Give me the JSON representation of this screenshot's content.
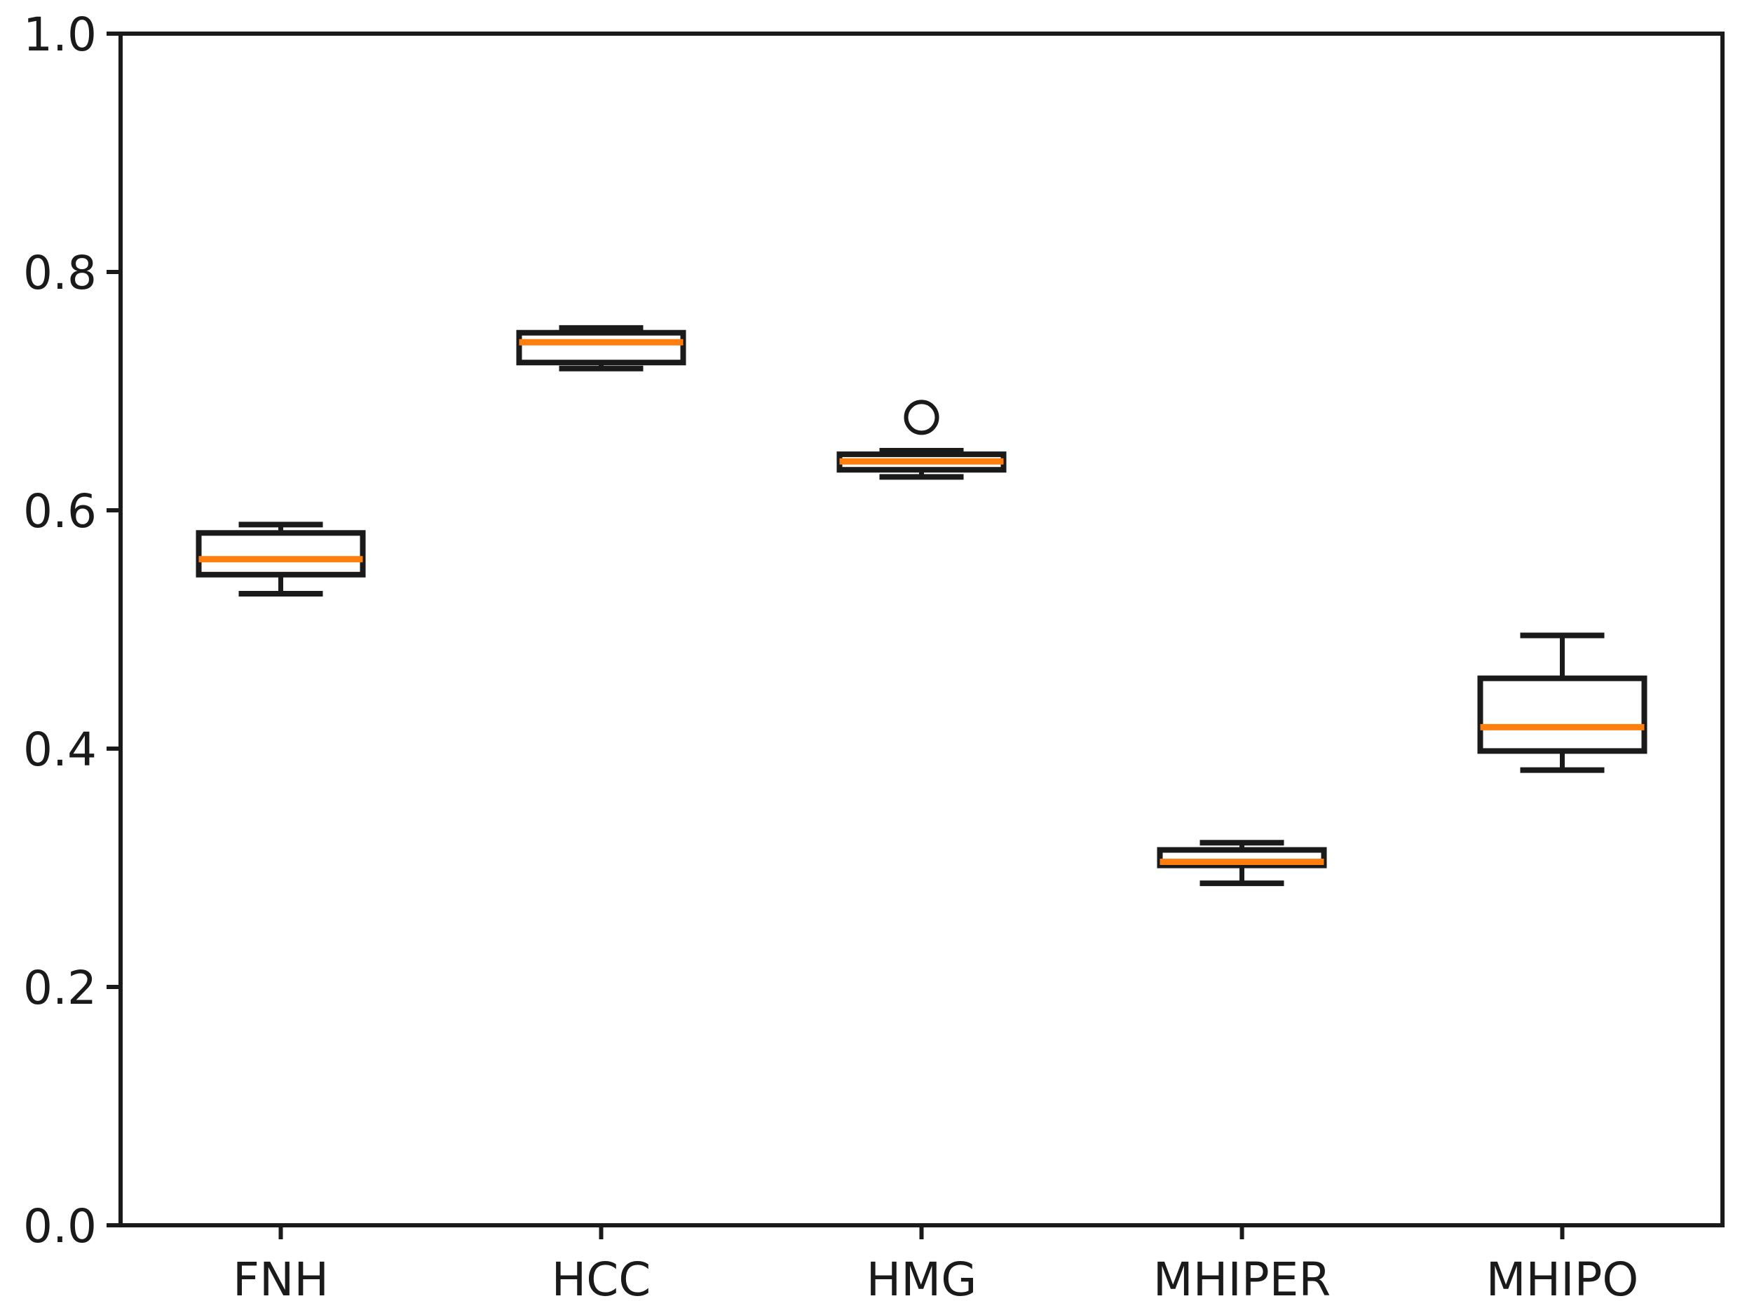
{
  "chart_data": {
    "type": "boxplot",
    "title": "",
    "xlabel": "",
    "ylabel": "",
    "grid": false,
    "legend": null,
    "categories": [
      "FNH",
      "HCC",
      "HMG",
      "MHIPER",
      "MHIPO"
    ],
    "series": [
      {
        "label": "FNH",
        "whislo": 0.53,
        "q1": 0.546,
        "med": 0.559,
        "q3": 0.581,
        "whishi": 0.588,
        "fliers": []
      },
      {
        "label": "HCC",
        "whislo": 0.719,
        "q1": 0.724,
        "med": 0.741,
        "q3": 0.749,
        "whishi": 0.753,
        "fliers": []
      },
      {
        "label": "HMG",
        "whislo": 0.628,
        "q1": 0.634,
        "med": 0.641,
        "q3": 0.647,
        "whishi": 0.65,
        "fliers": [
          0.678
        ]
      },
      {
        "label": "MHIPER",
        "whislo": 0.287,
        "q1": 0.302,
        "med": 0.305,
        "q3": 0.315,
        "whishi": 0.321,
        "fliers": []
      },
      {
        "label": "MHIPO",
        "whislo": 0.382,
        "q1": 0.398,
        "med": 0.418,
        "q3": 0.459,
        "whishi": 0.495,
        "fliers": []
      }
    ],
    "ylim": [
      0.0,
      1.0
    ],
    "yticks": [
      0.0,
      0.2,
      0.4,
      0.6,
      0.8,
      1.0
    ],
    "ytick_labels": [
      "0.0",
      "0.2",
      "0.4",
      "0.6",
      "0.8",
      "1.0"
    ],
    "colors": {
      "box_line": "#1a1a1a",
      "median_line": "#ff7f0e",
      "tick_text": "#1a1a1a",
      "background": "#ffffff"
    }
  }
}
